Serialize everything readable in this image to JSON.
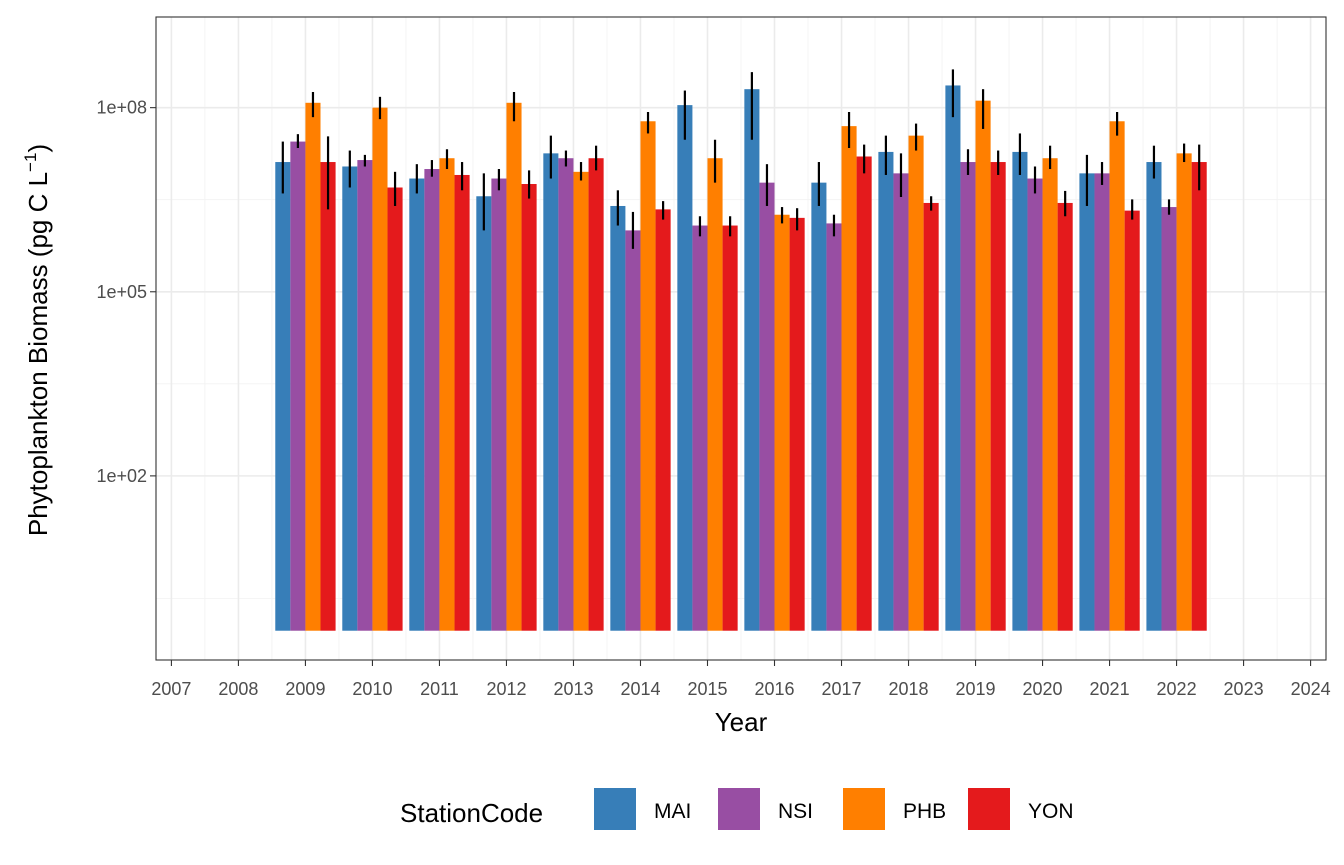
{
  "chart_data": {
    "type": "bar",
    "xlabel": "Year",
    "ylabel": "Phytoplankton Biomass (pg C L",
    "ylabel_sup": "−1",
    "ylabel_close": ")",
    "y_scale": "log10",
    "ylim": [
      0.1,
      3000000000
    ],
    "y_ticks": [
      {
        "value": 100,
        "label": "1e+02"
      },
      {
        "value": 100000,
        "label": "1e+05"
      },
      {
        "value": 100000000,
        "label": "1e+08"
      }
    ],
    "y_minor_ticks": [
      1,
      3162,
      3162278
    ],
    "xlim": [
      2006.77,
      2024.23
    ],
    "x_ticks": [
      "2007",
      "2008",
      "2009",
      "2010",
      "2011",
      "2012",
      "2013",
      "2014",
      "2015",
      "2016",
      "2017",
      "2018",
      "2019",
      "2020",
      "2021",
      "2022",
      "2023",
      "2024"
    ],
    "bar_floor": 0.3,
    "grid": true,
    "legend_title": "StationCode",
    "legend_position": "bottom",
    "categories": [
      "2009",
      "2010",
      "2011",
      "2012",
      "2013",
      "2014",
      "2015",
      "2016",
      "2017",
      "2018",
      "2019",
      "2020",
      "2021",
      "2022"
    ],
    "series": [
      {
        "name": "MAI",
        "color": "#377EB8",
        "values": [
          13000000,
          11000000,
          7000000,
          3600000,
          18000000,
          2500000,
          110000000,
          200000000,
          6000000,
          19000000,
          230000000,
          19000000,
          8500000,
          13000000
        ],
        "err_low": [
          4000000,
          5000000,
          4000000,
          1000000,
          7000000,
          1200000,
          30000000,
          30000000,
          2500000,
          8000000,
          70000000,
          8000000,
          2500000,
          7000000
        ],
        "err_high": [
          28000000,
          20000000,
          12000000,
          8500000,
          35000000,
          4500000,
          190000000,
          380000000,
          13000000,
          35000000,
          420000000,
          38000000,
          17000000,
          24000000
        ]
      },
      {
        "name": "NSI",
        "color": "#984EA3",
        "values": [
          28000000,
          14000000,
          10000000,
          7000000,
          15000000,
          1000000,
          1200000,
          6000000,
          1300000,
          8500000,
          13000000,
          7000000,
          8500000,
          2400000
        ],
        "err_low": [
          22000000,
          11000000,
          7500000,
          4500000,
          11000000,
          500000,
          800000,
          2500000,
          800000,
          3500000,
          8000000,
          4000000,
          5500000,
          1800000
        ],
        "err_high": [
          37000000,
          17000000,
          14000000,
          10000000,
          20000000,
          2000000,
          1700000,
          12000000,
          1800000,
          18000000,
          21000000,
          11000000,
          13000000,
          3200000
        ],
        "note": ""
      },
      {
        "name": "PHB",
        "color": "#FF7F00",
        "values": [
          120000000,
          100000000,
          15000000,
          120000000,
          9000000,
          60000000,
          15000000,
          1800000,
          50000000,
          35000000,
          130000000,
          15000000,
          60000000,
          18000000
        ],
        "err_low": [
          70000000,
          65000000,
          10000000,
          60000000,
          6500000,
          38000000,
          6000000,
          1300000,
          22000000,
          20000000,
          45000000,
          10000000,
          35000000,
          13000000
        ],
        "err_high": [
          180000000,
          150000000,
          21000000,
          180000000,
          13000000,
          85000000,
          30000000,
          2400000,
          85000000,
          55000000,
          200000000,
          24000000,
          85000000,
          26000000
        ]
      },
      {
        "name": "YON",
        "color": "#E41A1C",
        "values": [
          13000000,
          5000000,
          8000000,
          5700000,
          15000000,
          2200000,
          1200000,
          1600000,
          16000000,
          2800000,
          13000000,
          2800000,
          2100000,
          13000000
        ],
        "err_low": [
          2200000,
          2500000,
          4500000,
          3300000,
          9500000,
          1500000,
          800000,
          1000000,
          8500000,
          2100000,
          8000000,
          1700000,
          1500000,
          4500000
        ],
        "err_high": [
          34000000,
          9000000,
          13000000,
          9500000,
          24000000,
          3000000,
          1700000,
          2300000,
          25000000,
          3600000,
          20000000,
          4400000,
          3200000,
          25000000
        ]
      }
    ]
  }
}
